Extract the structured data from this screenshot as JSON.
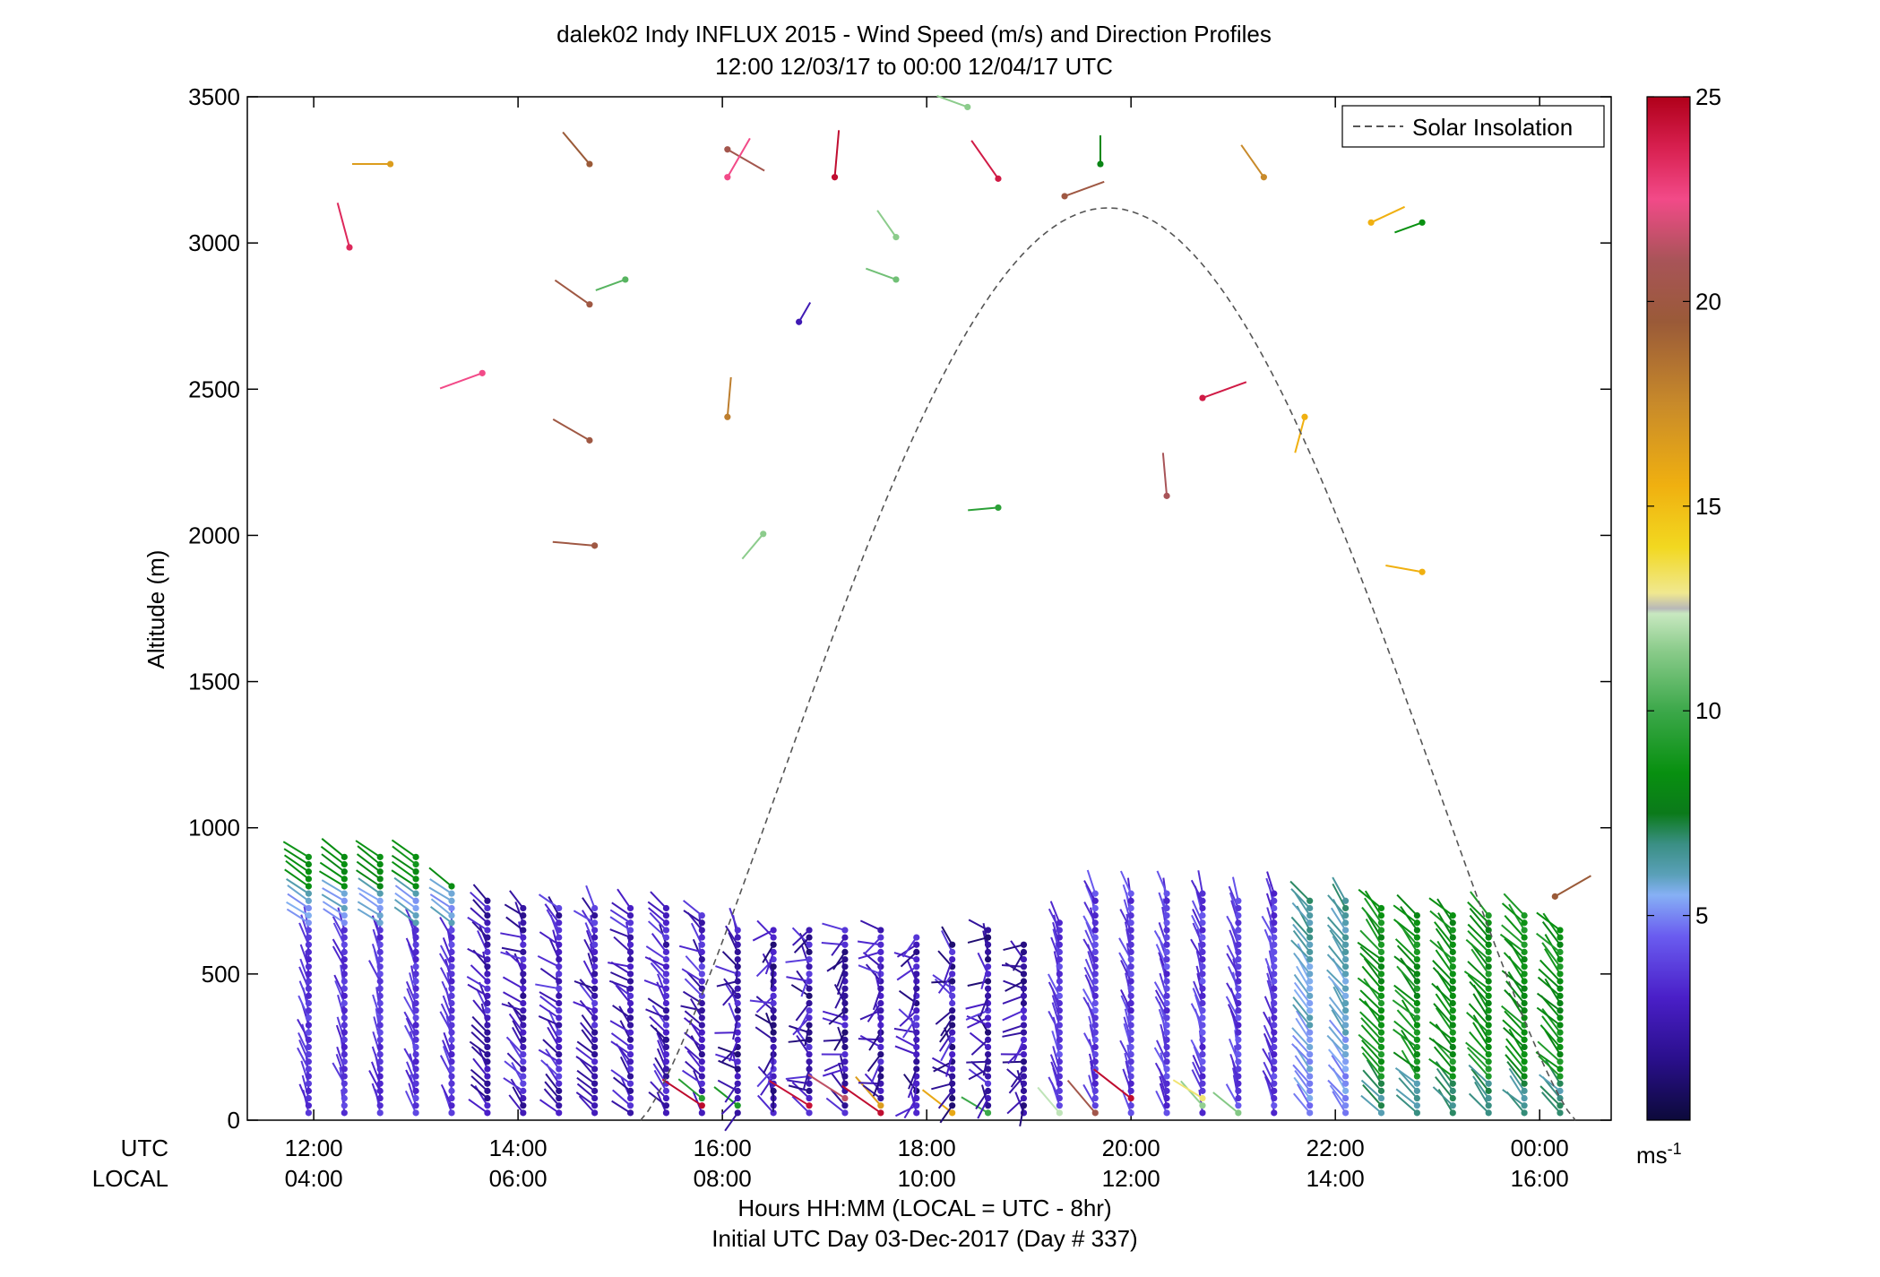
{
  "chart_data": {
    "type": "wind-barb-profile",
    "title": "dalek02 Indy INFLUX 2015 - Wind Speed (m/s) and Direction Profiles",
    "subtitle": "12:00 12/03/17 to 00:00 12/04/17  UTC",
    "ylabel": "Altitude (m)",
    "xlabel": "Hours HH:MM  (LOCAL = UTC - 8hr)",
    "xlabel2": "Initial UTC Day 03-Dec-2017 (Day # 337)",
    "x_row_utc_label": "UTC",
    "x_row_local_label": "LOCAL",
    "xlim_hours": [
      11.35,
      24.7
    ],
    "ylim": [
      0,
      3500
    ],
    "y_ticks": [
      0,
      500,
      1000,
      1500,
      2000,
      2500,
      3000,
      3500
    ],
    "x_ticks": [
      {
        "hour": 12,
        "utc": "12:00",
        "local": "04:00"
      },
      {
        "hour": 14,
        "utc": "14:00",
        "local": "06:00"
      },
      {
        "hour": 16,
        "utc": "16:00",
        "local": "08:00"
      },
      {
        "hour": 18,
        "utc": "18:00",
        "local": "10:00"
      },
      {
        "hour": 20,
        "utc": "20:00",
        "local": "12:00"
      },
      {
        "hour": 22,
        "utc": "22:00",
        "local": "14:00"
      },
      {
        "hour": 24,
        "utc": "00:00",
        "local": "16:00"
      }
    ],
    "legend": {
      "label": "Solar Insolation",
      "position": "top-right"
    },
    "solar_insolation": {
      "peak_hour": 19.75,
      "peak_alt": 3120,
      "start_hour": 15.2,
      "end_hour": 24.35
    },
    "colorbar": {
      "min": 0,
      "max": 25,
      "ticks": [
        5,
        10,
        15,
        20,
        25
      ],
      "unit": "ms",
      "unit_sup": "-1"
    },
    "profile_columns": [
      {
        "hour": 11.95,
        "top": 900
      },
      {
        "hour": 12.3,
        "top": 900
      },
      {
        "hour": 12.65,
        "top": 900
      },
      {
        "hour": 13.0,
        "top": 900
      },
      {
        "hour": 13.35,
        "top": 820
      },
      {
        "hour": 13.7,
        "top": 750
      },
      {
        "hour": 14.05,
        "top": 740
      },
      {
        "hour": 14.4,
        "top": 740
      },
      {
        "hour": 14.75,
        "top": 740
      },
      {
        "hour": 15.1,
        "top": 740
      },
      {
        "hour": 15.45,
        "top": 740
      },
      {
        "hour": 15.8,
        "top": 700
      },
      {
        "hour": 16.15,
        "top": 650
      },
      {
        "hour": 16.5,
        "top": 650
      },
      {
        "hour": 16.85,
        "top": 650
      },
      {
        "hour": 17.2,
        "top": 650
      },
      {
        "hour": 17.55,
        "top": 650
      },
      {
        "hour": 17.9,
        "top": 630
      },
      {
        "hour": 18.25,
        "top": 620
      },
      {
        "hour": 18.6,
        "top": 650
      },
      {
        "hour": 18.95,
        "top": 610
      },
      {
        "hour": 19.3,
        "top": 690
      },
      {
        "hour": 19.65,
        "top": 780
      },
      {
        "hour": 20.0,
        "top": 780
      },
      {
        "hour": 20.35,
        "top": 780
      },
      {
        "hour": 20.7,
        "top": 780
      },
      {
        "hour": 21.05,
        "top": 760
      },
      {
        "hour": 21.4,
        "top": 780
      },
      {
        "hour": 21.75,
        "top": 760
      },
      {
        "hour": 22.1,
        "top": 750
      },
      {
        "hour": 22.45,
        "top": 740
      },
      {
        "hour": 22.8,
        "top": 720
      },
      {
        "hour": 23.15,
        "top": 720
      },
      {
        "hour": 23.5,
        "top": 720
      },
      {
        "hour": 23.85,
        "top": 720
      },
      {
        "hour": 24.2,
        "top": 660
      }
    ],
    "upper_observations": [
      {
        "hour": 12.75,
        "alt": 3270,
        "speed": 16.5,
        "dir": 270
      },
      {
        "hour": 12.35,
        "alt": 2985,
        "speed": 23.5,
        "dir": 345
      },
      {
        "hour": 13.65,
        "alt": 2555,
        "speed": 22.5,
        "dir": 250
      },
      {
        "hour": 14.7,
        "alt": 3270,
        "speed": 19.5,
        "dir": 320
      },
      {
        "hour": 14.7,
        "alt": 2790,
        "speed": 20,
        "dir": 305
      },
      {
        "hour": 14.7,
        "alt": 2325,
        "speed": 20,
        "dir": 300
      },
      {
        "hour": 14.75,
        "alt": 1965,
        "speed": 20,
        "dir": 275
      },
      {
        "hour": 15.05,
        "alt": 2875,
        "speed": 10.5,
        "dir": 250
      },
      {
        "hour": 16.05,
        "alt": 3320,
        "speed": 20.5,
        "dir": 120
      },
      {
        "hour": 16.05,
        "alt": 3225,
        "speed": 22.5,
        "dir": 30
      },
      {
        "hour": 16.05,
        "alt": 2405,
        "speed": 18,
        "dir": 5
      },
      {
        "hour": 16.4,
        "alt": 2005,
        "speed": 11.5,
        "dir": 220
      },
      {
        "hour": 16.75,
        "alt": 2730,
        "speed": 2.5,
        "dir": 30
      },
      {
        "hour": 17.1,
        "alt": 3225,
        "speed": 24.5,
        "dir": 5
      },
      {
        "hour": 17.7,
        "alt": 3020,
        "speed": 11.5,
        "dir": 325
      },
      {
        "hour": 17.7,
        "alt": 2875,
        "speed": 11,
        "dir": 290
      },
      {
        "hour": 18.4,
        "alt": 3465,
        "speed": 11.5,
        "dir": 290
      },
      {
        "hour": 18.7,
        "alt": 2095,
        "speed": 9.5,
        "dir": 265
      },
      {
        "hour": 18.7,
        "alt": 3220,
        "speed": 24,
        "dir": 325
      },
      {
        "hour": 19.35,
        "alt": 3160,
        "speed": 20,
        "dir": 70
      },
      {
        "hour": 19.7,
        "alt": 3270,
        "speed": 8,
        "dir": 0
      },
      {
        "hour": 20.35,
        "alt": 2135,
        "speed": 21,
        "dir": 355
      },
      {
        "hour": 20.7,
        "alt": 2470,
        "speed": 24,
        "dir": 70
      },
      {
        "hour": 21.3,
        "alt": 3225,
        "speed": 17.5,
        "dir": 325
      },
      {
        "hour": 21.7,
        "alt": 2405,
        "speed": 15.5,
        "dir": 195
      },
      {
        "hour": 22.35,
        "alt": 3070,
        "speed": 15.5,
        "dir": 65
      },
      {
        "hour": 22.85,
        "alt": 1875,
        "speed": 15.5,
        "dir": 280
      },
      {
        "hour": 22.85,
        "alt": 3070,
        "speed": 8.5,
        "dir": 250
      },
      {
        "hour": 24.15,
        "alt": 765,
        "speed": 19.5,
        "dir": 60
      }
    ]
  }
}
